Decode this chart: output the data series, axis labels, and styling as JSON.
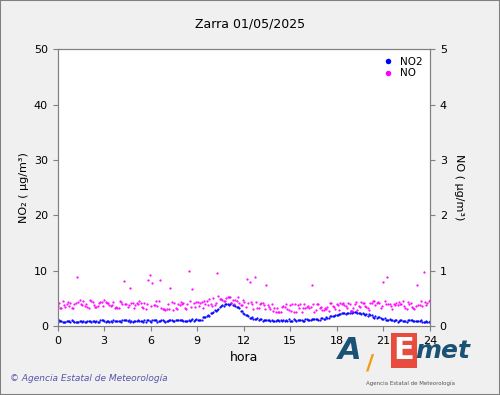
{
  "title": "Zarra 01/05/2025",
  "xlabel": "hora",
  "ylabel_left": "NO₂ ( µg/m³)",
  "ylabel_right": "NO ( µg/m³)",
  "xlim": [
    0,
    24
  ],
  "xticks": [
    0,
    3,
    6,
    9,
    12,
    15,
    18,
    21,
    24
  ],
  "ylim_left": [
    0,
    50
  ],
  "ylim_right": [
    0,
    5
  ],
  "yticks_left": [
    0,
    10,
    20,
    30,
    40,
    50
  ],
  "yticks_right": [
    0,
    1,
    2,
    3,
    4,
    5
  ],
  "no2_color": "#0000ff",
  "no_color": "#ff00ff",
  "background_color": "#ffffff",
  "border_color": "#808080",
  "copyright_text": "© Agencia Estatal de Meteorología",
  "copyright_color": "#5555aa",
  "seed": 42,
  "n_points": 288,
  "outer_border_color": "#808080",
  "fig_background": "#f0f0f0"
}
